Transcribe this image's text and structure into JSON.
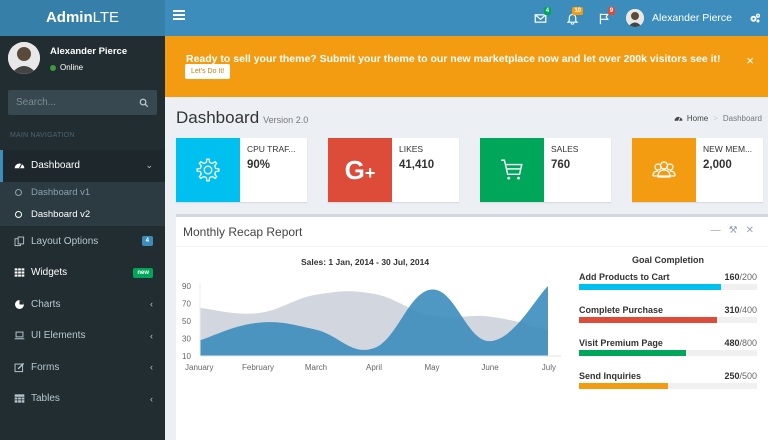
{
  "header": {
    "logo_bold": "Admin",
    "logo_light": "LTE",
    "notifications": [
      {
        "icon": "envelope-icon",
        "badge": "4",
        "color": "#00a65a"
      },
      {
        "icon": "bell-icon",
        "badge": "10",
        "color": "#f39c12"
      },
      {
        "icon": "flag-icon",
        "badge": "9",
        "color": "#dd4b39"
      }
    ],
    "user_name": "Alexander Pierce"
  },
  "sidebar": {
    "user_name": "Alexander Pierce",
    "status": "Online",
    "search_placeholder": "Search...",
    "nav_header": "MAIN NAVIGATION",
    "items": [
      {
        "label": "Dashboard",
        "icon": "dashboard-icon",
        "active": true
      },
      {
        "label": "Layout Options",
        "icon": "files-icon",
        "badge": "4",
        "badge_color": "#3c8dbc"
      },
      {
        "label": "Widgets",
        "icon": "th-icon",
        "badge": "new",
        "badge_color": "#00a65a"
      },
      {
        "label": "Charts",
        "icon": "pie-chart-icon"
      },
      {
        "label": "UI Elements",
        "icon": "laptop-icon"
      },
      {
        "label": "Forms",
        "icon": "edit-icon"
      },
      {
        "label": "Tables",
        "icon": "table-icon"
      }
    ],
    "subitems": [
      {
        "label": "Dashboard v1"
      },
      {
        "label": "Dashboard v2",
        "active": true
      }
    ]
  },
  "alert": {
    "message": "Ready to sell your theme? Submit your theme to our new marketplace now and let over 200k visitors see it!",
    "button": "Let's Do It!",
    "close": "×"
  },
  "page": {
    "title": "Dashboard",
    "subtitle": "Version 2.0",
    "breadcrumb": [
      "Home",
      "Dashboard"
    ]
  },
  "info_boxes": [
    {
      "title": "CPU TRAF...",
      "value": "90%",
      "color": "#00c0ef",
      "icon": "gear-icon"
    },
    {
      "title": "LIKES",
      "value": "41,410",
      "color": "#dd4b39",
      "icon": "google-plus-icon"
    },
    {
      "title": "SALES",
      "value": "760",
      "color": "#00a65a",
      "icon": "shopping-cart-icon"
    },
    {
      "title": "NEW MEM...",
      "value": "2,000",
      "color": "#f39c12",
      "icon": "users-icon"
    }
  ],
  "report": {
    "title": "Monthly Recap Report",
    "chart_title": "Sales: 1 Jan, 2014 - 30 Jul, 2014",
    "goals_title": "Goal Completion",
    "goals": [
      {
        "label": "Add Products to Cart",
        "value": "160",
        "total": "/200",
        "pct": 80,
        "color": "#00c0ef"
      },
      {
        "label": "Complete Purchase",
        "value": "310",
        "total": "/400",
        "pct": 77.5,
        "color": "#dd4b39"
      },
      {
        "label": "Visit Premium Page",
        "value": "480",
        "total": "/800",
        "pct": 60,
        "color": "#00a65a"
      },
      {
        "label": "Send Inquiries",
        "value": "250",
        "total": "/500",
        "pct": 50,
        "color": "#f39c12"
      }
    ]
  },
  "chart_data": {
    "type": "area",
    "title": "Sales: 1 Jan, 2014 - 30 Jul, 2014",
    "categories": [
      "January",
      "February",
      "March",
      "April",
      "May",
      "June",
      "July"
    ],
    "series": [
      {
        "name": "Series 1 (gray)",
        "color": "#d2d6de",
        "values": [
          65,
          59,
          80,
          81,
          56,
          55,
          40
        ]
      },
      {
        "name": "Series 2 (blue)",
        "color": "#3c8dbc",
        "values": [
          28,
          48,
          40,
          19,
          86,
          27,
          90
        ]
      }
    ],
    "yticks": [
      10,
      30,
      50,
      70,
      90
    ],
    "ylim": [
      10,
      90
    ],
    "xlabel": "",
    "ylabel": "",
    "grid": false,
    "legend": "none"
  }
}
